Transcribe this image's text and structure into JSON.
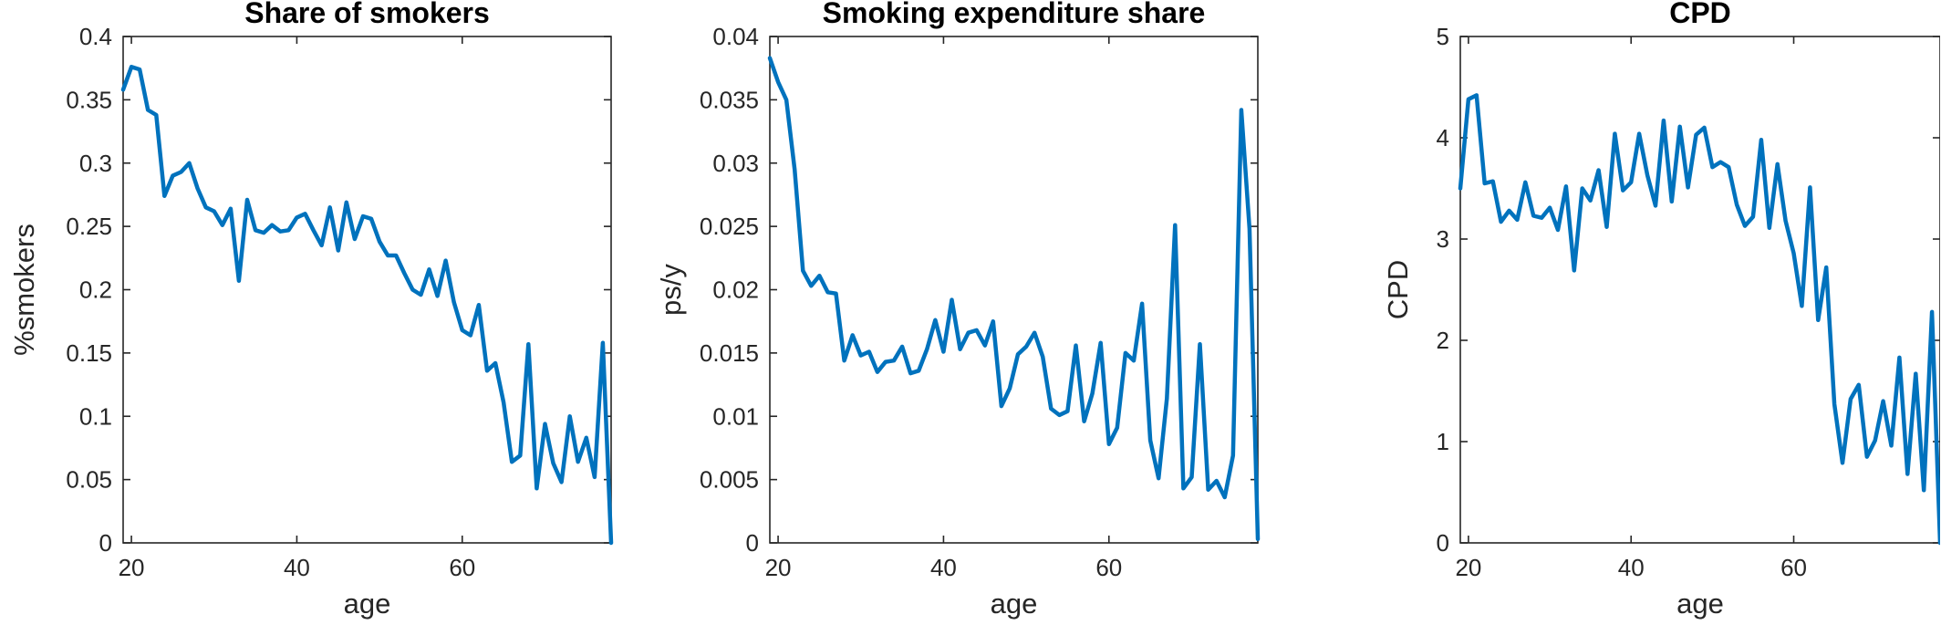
{
  "chart_data": [
    {
      "type": "line",
      "title": "Share of smokers",
      "xlabel": "age",
      "ylabel": "%smokers",
      "xlim": [
        19,
        78
      ],
      "ylim": [
        0,
        0.4
      ],
      "xticks": [
        20,
        40,
        60
      ],
      "yticks": [
        0,
        0.05,
        0.1,
        0.15,
        0.2,
        0.25,
        0.3,
        0.35,
        0.4
      ],
      "ytick_labels": [
        "0",
        "0.05",
        "0.1",
        "0.15",
        "0.2",
        "0.25",
        "0.3",
        "0.35",
        "0.4"
      ],
      "grid": false,
      "color": "#0072BD",
      "x": [
        19,
        20,
        21,
        22,
        23,
        24,
        25,
        26,
        27,
        28,
        29,
        30,
        31,
        32,
        33,
        34,
        35,
        36,
        37,
        38,
        39,
        40,
        41,
        42,
        43,
        44,
        45,
        46,
        47,
        48,
        49,
        50,
        51,
        52,
        53,
        54,
        55,
        56,
        57,
        58,
        59,
        60,
        61,
        62,
        63,
        64,
        65,
        66,
        67,
        68,
        69,
        70,
        71,
        72,
        73,
        74,
        75,
        76,
        77,
        78
      ],
      "values": [
        0.358,
        0.376,
        0.374,
        0.342,
        0.338,
        0.274,
        0.29,
        0.293,
        0.3,
        0.28,
        0.265,
        0.262,
        0.251,
        0.264,
        0.207,
        0.271,
        0.247,
        0.245,
        0.251,
        0.246,
        0.247,
        0.257,
        0.26,
        0.247,
        0.235,
        0.265,
        0.231,
        0.269,
        0.24,
        0.258,
        0.256,
        0.238,
        0.227,
        0.227,
        0.213,
        0.2,
        0.196,
        0.216,
        0.195,
        0.223,
        0.19,
        0.168,
        0.164,
        0.188,
        0.136,
        0.142,
        0.111,
        0.064,
        0.069,
        0.157,
        0.043,
        0.094,
        0.063,
        0.048,
        0.1,
        0.064,
        0.083,
        0.052,
        0.158,
        0.0
      ]
    },
    {
      "type": "line",
      "title": "Smoking expenditure share",
      "xlabel": "age",
      "ylabel": "ps/y",
      "xlim": [
        19,
        78
      ],
      "ylim": [
        0,
        0.04
      ],
      "xticks": [
        20,
        40,
        60
      ],
      "yticks": [
        0,
        0.005,
        0.01,
        0.015,
        0.02,
        0.025,
        0.03,
        0.035,
        0.04
      ],
      "ytick_labels": [
        "0",
        "0.005",
        "0.01",
        "0.015",
        "0.02",
        "0.025",
        "0.03",
        "0.035",
        "0.04"
      ],
      "grid": false,
      "color": "#0072BD",
      "x": [
        19,
        20,
        21,
        22,
        23,
        24,
        25,
        26,
        27,
        28,
        29,
        30,
        31,
        32,
        33,
        34,
        35,
        36,
        37,
        38,
        39,
        40,
        41,
        42,
        43,
        44,
        45,
        46,
        47,
        48,
        49,
        50,
        51,
        52,
        53,
        54,
        55,
        56,
        57,
        58,
        59,
        60,
        61,
        62,
        63,
        64,
        65,
        66,
        67,
        68,
        69,
        70,
        71,
        72,
        73,
        74,
        75,
        76,
        77,
        78
      ],
      "values": [
        0.0383,
        0.0364,
        0.035,
        0.0295,
        0.0215,
        0.0203,
        0.0211,
        0.0198,
        0.0197,
        0.0144,
        0.0164,
        0.0148,
        0.0151,
        0.0135,
        0.0143,
        0.0144,
        0.0155,
        0.0134,
        0.0136,
        0.0153,
        0.0176,
        0.0151,
        0.0192,
        0.0153,
        0.0166,
        0.0168,
        0.0156,
        0.0175,
        0.0108,
        0.0122,
        0.0149,
        0.0155,
        0.0166,
        0.0147,
        0.0106,
        0.0101,
        0.0104,
        0.0156,
        0.0096,
        0.0118,
        0.0158,
        0.0078,
        0.0091,
        0.015,
        0.0144,
        0.0189,
        0.0081,
        0.0051,
        0.0114,
        0.0251,
        0.0043,
        0.0052,
        0.0157,
        0.0042,
        0.0049,
        0.0036,
        0.0069,
        0.0342,
        0.0248,
        0.0003
      ]
    },
    {
      "type": "line",
      "title": "CPD",
      "xlabel": "age",
      "ylabel": "CPD",
      "xlim": [
        19,
        78
      ],
      "ylim": [
        0,
        5
      ],
      "xticks": [
        20,
        40,
        60
      ],
      "yticks": [
        0,
        1,
        2,
        3,
        4,
        5
      ],
      "ytick_labels": [
        "0",
        "1",
        "2",
        "3",
        "4",
        "5"
      ],
      "grid": false,
      "color": "#0072BD",
      "x": [
        19,
        20,
        21,
        22,
        23,
        24,
        25,
        26,
        27,
        28,
        29,
        30,
        31,
        32,
        33,
        34,
        35,
        36,
        37,
        38,
        39,
        40,
        41,
        42,
        43,
        44,
        45,
        46,
        47,
        48,
        49,
        50,
        51,
        52,
        53,
        54,
        55,
        56,
        57,
        58,
        59,
        60,
        61,
        62,
        63,
        64,
        65,
        66,
        67,
        68,
        69,
        70,
        71,
        72,
        73,
        74,
        75,
        76,
        77,
        78
      ],
      "values": [
        3.5,
        4.38,
        4.42,
        3.55,
        3.57,
        3.17,
        3.28,
        3.19,
        3.56,
        3.23,
        3.21,
        3.31,
        3.09,
        3.52,
        2.69,
        3.5,
        3.38,
        3.68,
        3.12,
        4.04,
        3.48,
        3.56,
        4.04,
        3.63,
        3.33,
        4.17,
        3.37,
        4.11,
        3.51,
        4.03,
        4.1,
        3.71,
        3.76,
        3.71,
        3.34,
        3.13,
        3.22,
        3.98,
        3.11,
        3.74,
        3.18,
        2.86,
        2.34,
        3.51,
        2.2,
        2.72,
        1.37,
        0.79,
        1.42,
        1.56,
        0.85,
        1.01,
        1.4,
        0.96,
        1.83,
        0.68,
        1.67,
        0.52,
        2.28,
        0.0
      ]
    }
  ]
}
